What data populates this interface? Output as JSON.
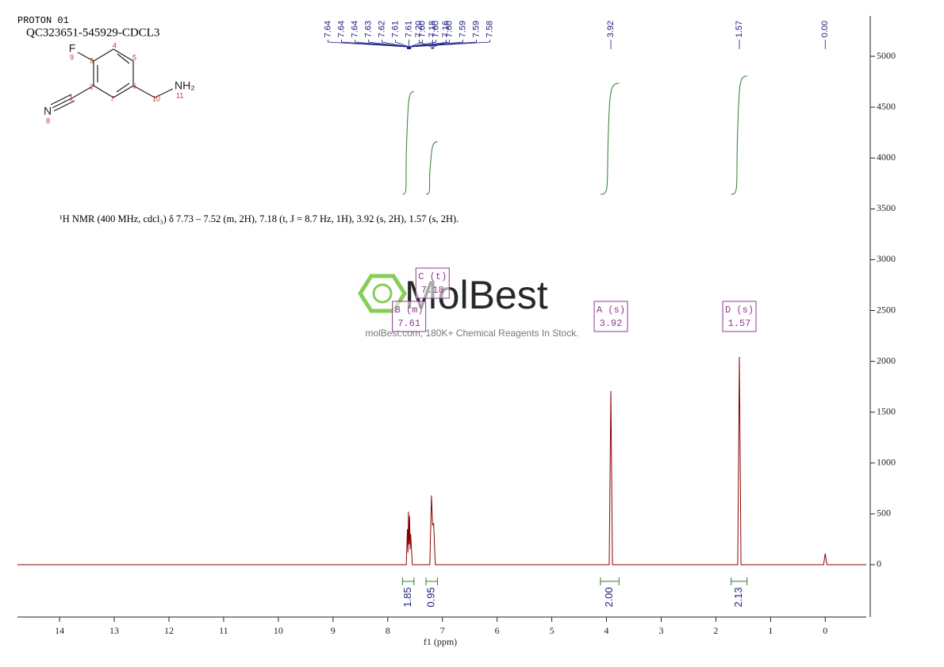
{
  "chart_data": {
    "type": "line",
    "title": "PROTON 01",
    "subtitle": "QC323651-545929-CDCL3",
    "annotation": "¹H NMR (400 MHz, cdcl₃) δ 7.73 – 7.52 (m, 2H), 7.18 (t, J = 8.7 Hz, 1H), 3.92 (s, 2H), 1.57 (s, 2H).",
    "x_label": "f1 (ppm)",
    "color": "#8b0000",
    "x": [
      14.77,
      7.7,
      7.66,
      7.64,
      7.63,
      7.62,
      7.61,
      7.6,
      7.59,
      7.58,
      7.55,
      7.23,
      7.2,
      7.18,
      7.16,
      7.13,
      3.95,
      3.92,
      3.89,
      1.6,
      1.57,
      1.54,
      0.03,
      0,
      -0.03,
      -0.75
    ],
    "values": [
      0,
      0,
      0,
      350,
      120,
      520,
      200,
      480,
      150,
      300,
      0,
      0,
      680,
      390,
      405,
      0,
      0,
      1708,
      0,
      0,
      2044,
      0,
      0,
      109,
      0,
      0
    ],
    "xlim": [
      14.77,
      -0.75
    ],
    "xticks": [
      14,
      13,
      12,
      11,
      10,
      9,
      8,
      7,
      6,
      5,
      4,
      3,
      2,
      1,
      0
    ],
    "ylim": [
      -515,
      5398
    ],
    "yticks": [
      0,
      500,
      1000,
      1500,
      2000,
      2500,
      3000,
      3500,
      4000,
      4500,
      5000
    ],
    "y_axis_side": "right",
    "peak_shifts": [
      7.64,
      7.64,
      7.64,
      7.63,
      7.62,
      7.61,
      7.61,
      7.6,
      7.6,
      7.6,
      7.59,
      7.59,
      7.58,
      7.2,
      7.18,
      7.16,
      3.92,
      1.57,
      0.0
    ],
    "peak_labels": [
      "7.64",
      "7.64",
      "7.64",
      "7.63",
      "7.62",
      "7.61",
      "7.61",
      "7.60",
      "7.60",
      "7.60",
      "7.59",
      "7.59",
      "7.58",
      "7.20",
      "7.18",
      "7.16",
      "3.92",
      "1.57",
      "0.00"
    ],
    "integrals": {
      "values": [
        1.85,
        0.95,
        2,
        2.13
      ],
      "value_labels": [
        "1.85",
        "0.95",
        "2.00",
        "2.13"
      ],
      "ranges": [
        [
          7.73,
          7.52
        ],
        [
          7.3,
          7.09
        ],
        [
          4.11,
          3.77
        ],
        [
          1.72,
          1.43
        ]
      ],
      "color": "#2e7d32"
    },
    "multiplets": {
      "labels": [
        "B (m)",
        "C (t)",
        "A (s)",
        "D (s)"
      ],
      "shifts": [
        7.61,
        7.18,
        3.92,
        1.57
      ],
      "color": "#8e3a8e"
    }
  },
  "watermark": {
    "brand": "MolBest",
    "tagline": "molBest.com, 180K+ Chemical Reagents In Stock."
  },
  "molecule": {
    "atom_labels": [
      "F",
      "N",
      "NH₂"
    ],
    "atom_numbers": [
      "9",
      "8",
      "11"
    ],
    "carbon_numbers": [
      "1",
      "2",
      "3",
      "4",
      "5",
      "6",
      "7",
      "10"
    ]
  }
}
